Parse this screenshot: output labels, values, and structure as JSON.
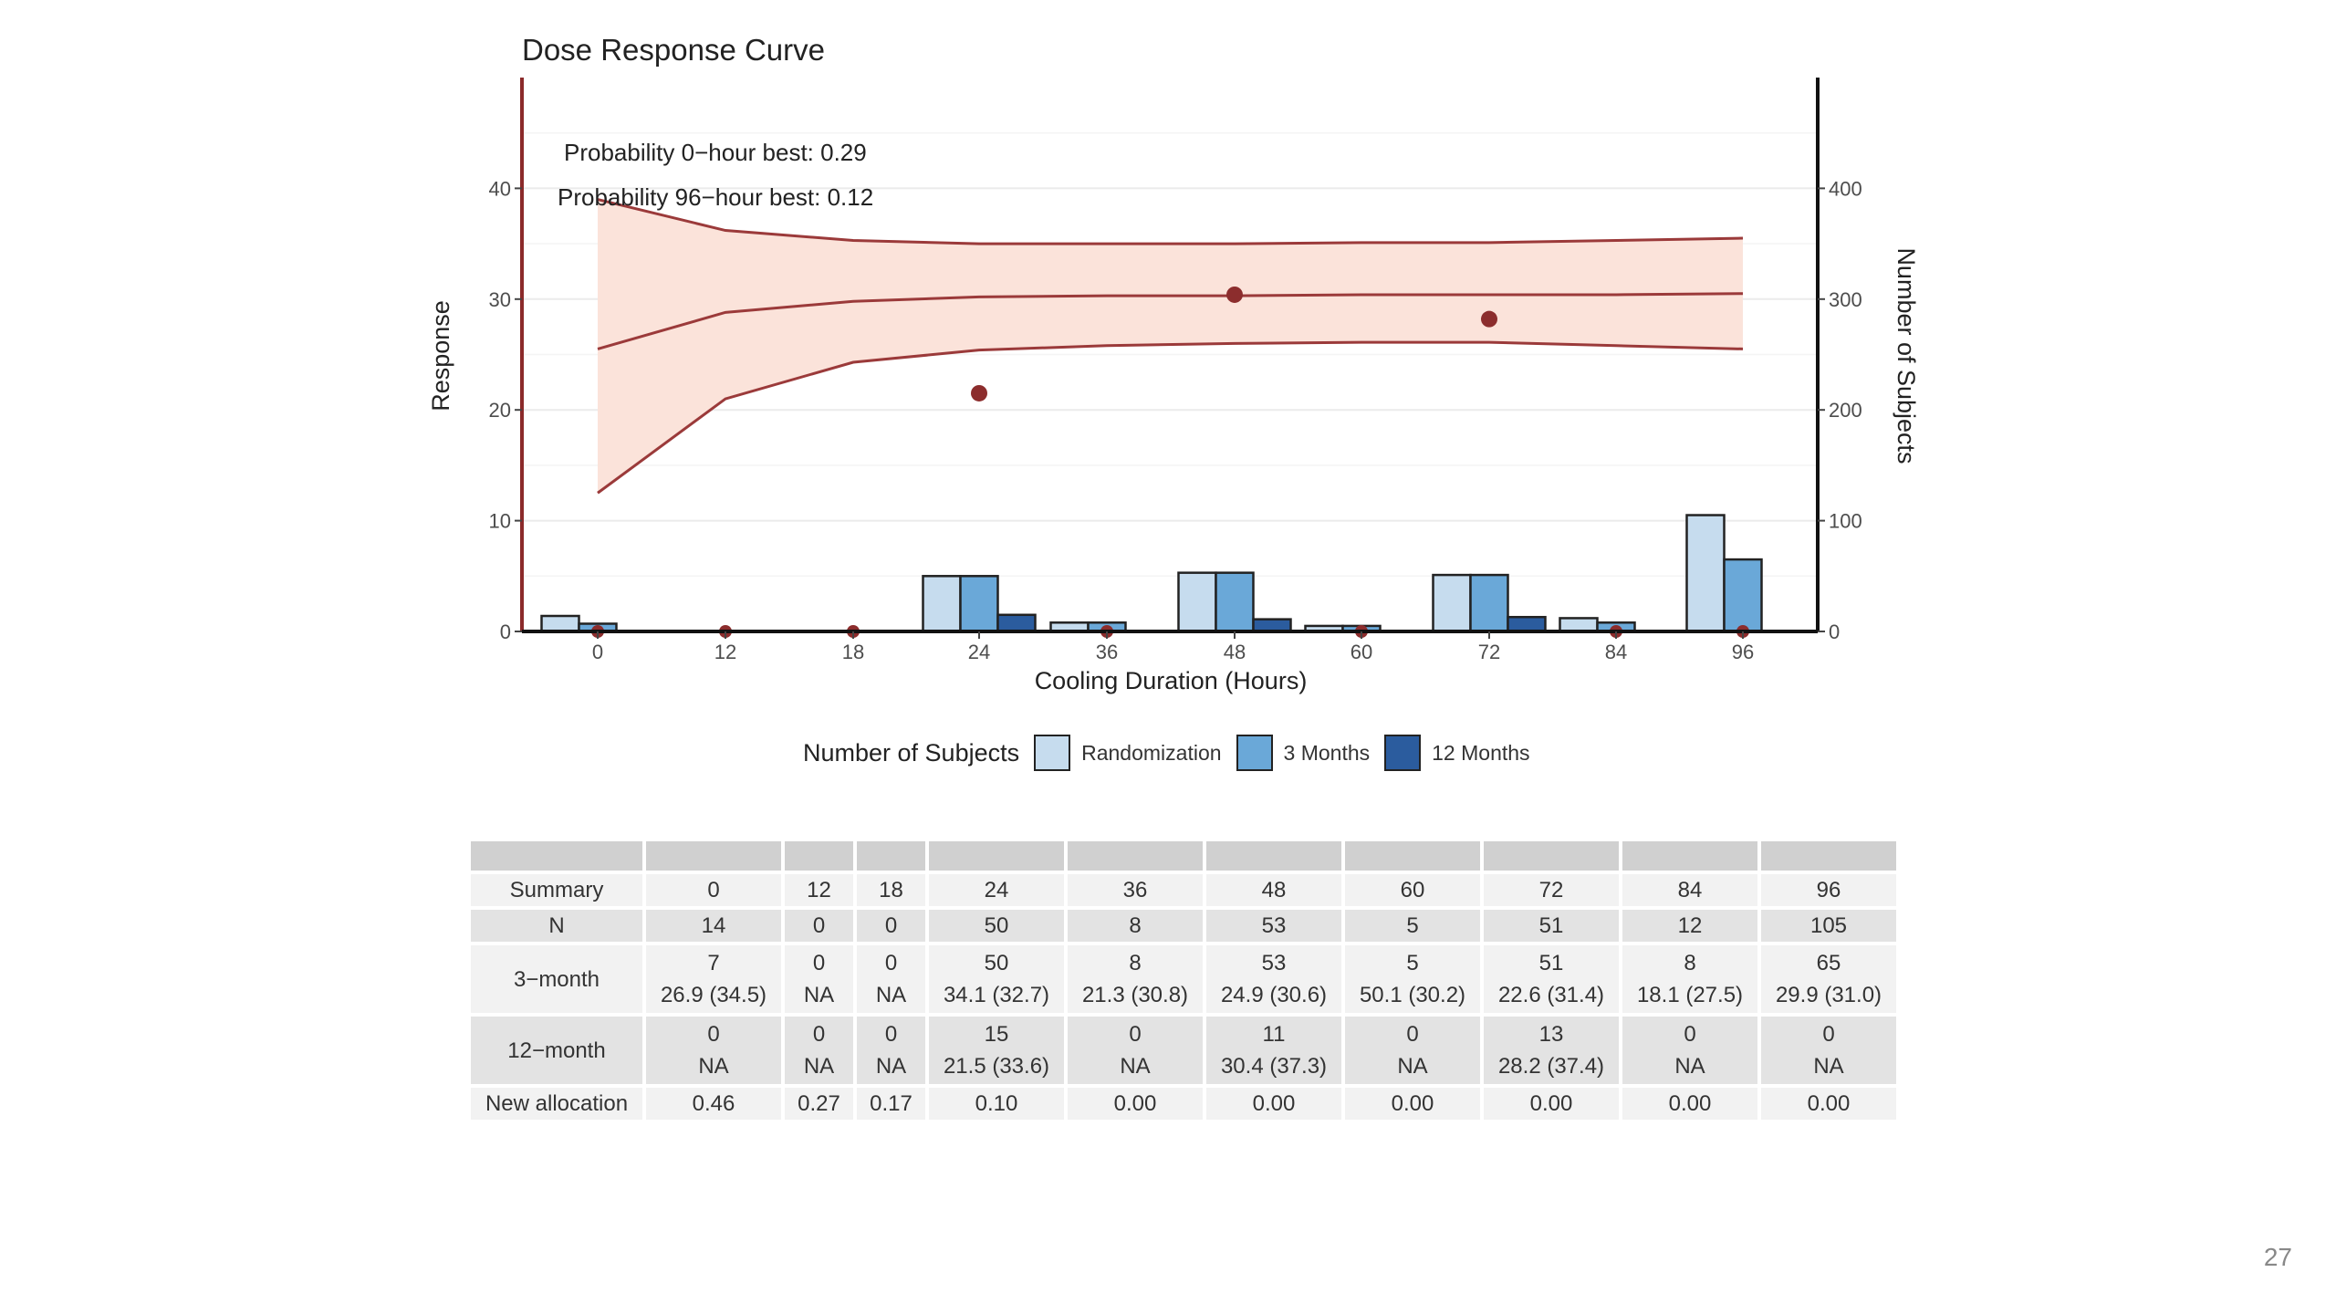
{
  "page_number": "27",
  "colors": {
    "curve": "#9b3a3a",
    "band": "#fbe3da",
    "axis_left": "#8b2a2a",
    "points": "#8c2d2d",
    "randomization": "#c6dcee",
    "three_months": "#6aa8d8",
    "twelve_months": "#2b5c9e"
  },
  "chart_data": {
    "type": "line",
    "title": "Dose Response Curve",
    "xlabel": "Cooling Duration (Hours)",
    "ylabel": "Response",
    "y2label": "Number of Subjects",
    "categories": [
      "0",
      "12",
      "18",
      "24",
      "36",
      "48",
      "60",
      "72",
      "84",
      "96"
    ],
    "ylim": [
      0,
      50
    ],
    "y2lim": [
      0,
      500
    ],
    "yticks": [
      "0",
      "10",
      "20",
      "30",
      "40"
    ],
    "y2ticks": [
      "0",
      "100",
      "200",
      "300",
      "400"
    ],
    "annotations": [
      "Probability 0−hour best: 0.29",
      "Probability 96−hour best: 0.12"
    ],
    "curve": {
      "mean": [
        25.5,
        28.8,
        29.8,
        30.2,
        30.3,
        30.3,
        30.4,
        30.4,
        30.4,
        30.5
      ],
      "upper": [
        39.0,
        36.2,
        35.3,
        35.0,
        35.0,
        35.0,
        35.1,
        35.1,
        35.3,
        35.5
      ],
      "lower": [
        12.5,
        21.0,
        24.3,
        25.4,
        25.8,
        26.0,
        26.1,
        26.1,
        25.8,
        25.5
      ]
    },
    "observed_points": [
      {
        "x": "0",
        "y": 0
      },
      {
        "x": "12",
        "y": 0
      },
      {
        "x": "18",
        "y": 0
      },
      {
        "x": "24",
        "y": 21.5
      },
      {
        "x": "36",
        "y": 0
      },
      {
        "x": "48",
        "y": 30.4
      },
      {
        "x": "60",
        "y": 0
      },
      {
        "x": "72",
        "y": 28.2
      },
      {
        "x": "84",
        "y": 0
      },
      {
        "x": "96",
        "y": 0
      }
    ],
    "legend_title": "Number of Subjects",
    "series": [
      {
        "name": "Randomization",
        "values": [
          14,
          0,
          0,
          50,
          8,
          53,
          5,
          51,
          12,
          105
        ]
      },
      {
        "name": "3 Months",
        "values": [
          7,
          0,
          0,
          50,
          8,
          53,
          5,
          51,
          8,
          65
        ]
      },
      {
        "name": "12 Months",
        "values": [
          0,
          0,
          0,
          15,
          0,
          11,
          0,
          13,
          0,
          0
        ]
      }
    ],
    "grid": true,
    "legend_position": "bottom"
  },
  "table": {
    "columns": [
      "0",
      "12",
      "18",
      "24",
      "36",
      "48",
      "60",
      "72",
      "84",
      "96"
    ],
    "rows": [
      {
        "label": "Summary",
        "cells": [
          [
            "0"
          ],
          [
            "12"
          ],
          [
            "18"
          ],
          [
            "24"
          ],
          [
            "36"
          ],
          [
            "48"
          ],
          [
            "60"
          ],
          [
            "72"
          ],
          [
            "84"
          ],
          [
            "96"
          ]
        ]
      },
      {
        "label": "N",
        "cells": [
          [
            "14"
          ],
          [
            "0"
          ],
          [
            "0"
          ],
          [
            "50"
          ],
          [
            "8"
          ],
          [
            "53"
          ],
          [
            "5"
          ],
          [
            "51"
          ],
          [
            "12"
          ],
          [
            "105"
          ]
        ]
      },
      {
        "label": "3−month",
        "cells": [
          [
            "7",
            "26.9 (34.5)"
          ],
          [
            "0",
            "NA"
          ],
          [
            "0",
            "NA"
          ],
          [
            "50",
            "34.1 (32.7)"
          ],
          [
            "8",
            "21.3 (30.8)"
          ],
          [
            "53",
            "24.9 (30.6)"
          ],
          [
            "5",
            "50.1 (30.2)"
          ],
          [
            "51",
            "22.6 (31.4)"
          ],
          [
            "8",
            "18.1 (27.5)"
          ],
          [
            "65",
            "29.9 (31.0)"
          ]
        ]
      },
      {
        "label": "12−month",
        "cells": [
          [
            "0",
            "NA"
          ],
          [
            "0",
            "NA"
          ],
          [
            "0",
            "NA"
          ],
          [
            "15",
            "21.5 (33.6)"
          ],
          [
            "0",
            "NA"
          ],
          [
            "11",
            "30.4 (37.3)"
          ],
          [
            "0",
            "NA"
          ],
          [
            "13",
            "28.2 (37.4)"
          ],
          [
            "0",
            "NA"
          ],
          [
            "0",
            "NA"
          ]
        ]
      },
      {
        "label": "New allocation",
        "cells": [
          [
            "0.46"
          ],
          [
            "0.27"
          ],
          [
            "0.17"
          ],
          [
            "0.10"
          ],
          [
            "0.00"
          ],
          [
            "0.00"
          ],
          [
            "0.00"
          ],
          [
            "0.00"
          ],
          [
            "0.00"
          ],
          [
            "0.00"
          ]
        ]
      }
    ]
  }
}
